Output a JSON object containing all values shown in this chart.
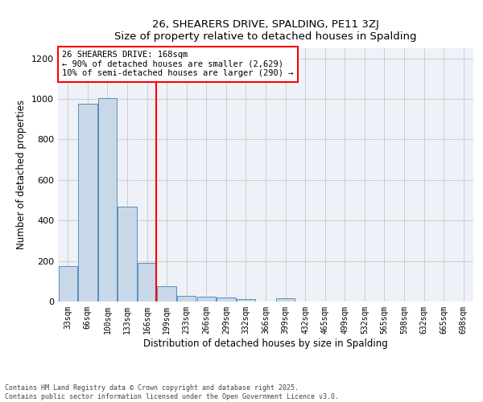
{
  "title_line1": "26, SHEARERS DRIVE, SPALDING, PE11 3ZJ",
  "title_line2": "Size of property relative to detached houses in Spalding",
  "xlabel": "Distribution of detached houses by size in Spalding",
  "ylabel": "Number of detached properties",
  "categories": [
    "33sqm",
    "66sqm",
    "100sqm",
    "133sqm",
    "166sqm",
    "199sqm",
    "233sqm",
    "266sqm",
    "299sqm",
    "332sqm",
    "366sqm",
    "399sqm",
    "432sqm",
    "465sqm",
    "499sqm",
    "532sqm",
    "565sqm",
    "598sqm",
    "632sqm",
    "665sqm",
    "698sqm"
  ],
  "values": [
    175,
    975,
    1005,
    470,
    190,
    75,
    28,
    22,
    20,
    12,
    0,
    15,
    0,
    0,
    0,
    0,
    0,
    0,
    0,
    0,
    0
  ],
  "bar_color": "#c8d8e8",
  "bar_edge_color": "#5b8db8",
  "grid_color": "#cccccc",
  "background_color": "#eef2f8",
  "red_line_index": 4,
  "annotation_title": "26 SHEARERS DRIVE: 168sqm",
  "annotation_line1": "← 90% of detached houses are smaller (2,629)",
  "annotation_line2": "10% of semi-detached houses are larger (290) →",
  "ylim": [
    0,
    1250
  ],
  "yticks": [
    0,
    200,
    400,
    600,
    800,
    1000,
    1200
  ],
  "footer_line1": "Contains HM Land Registry data © Crown copyright and database right 2025.",
  "footer_line2": "Contains public sector information licensed under the Open Government Licence v3.0."
}
